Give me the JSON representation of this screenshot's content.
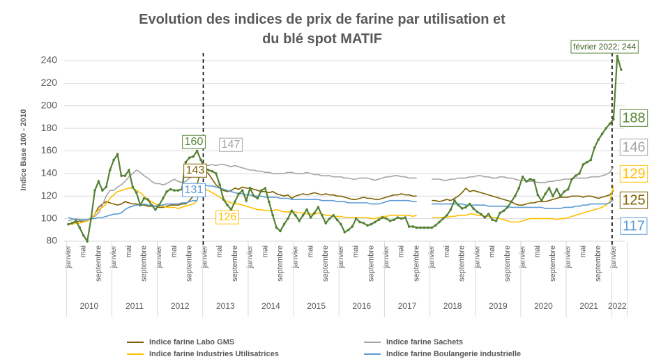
{
  "chart_data": {
    "type": "line",
    "title": "Evolution des indices de prix de farine par utilisation et du blé spot MATIF",
    "y_label": "Indice Base 100 - 2010",
    "ylim": [
      80,
      250
    ],
    "yticks": [
      80,
      100,
      120,
      140,
      160,
      180,
      200,
      220,
      240
    ],
    "grid": true,
    "legend": "bottom",
    "annotation": "février 2022; 244",
    "years": [
      "2010",
      "2011",
      "2012",
      "2013",
      "2014",
      "2015",
      "2016",
      "2017",
      "2018",
      "2019",
      "2020",
      "2021",
      "2022"
    ],
    "categories": [
      "janvier",
      null,
      null,
      null,
      "mai",
      null,
      null,
      null,
      "septembre",
      null,
      null,
      null,
      "janvier",
      null,
      null,
      null,
      "mai",
      null,
      null,
      null,
      "septembre",
      null,
      null,
      null,
      "janvier",
      null,
      null,
      null,
      "mai",
      null,
      null,
      null,
      "septembre",
      null,
      null,
      null,
      "janvier",
      null,
      null,
      null,
      "mai",
      null,
      null,
      null,
      "septembre",
      null,
      null,
      null,
      "janvier",
      null,
      null,
      null,
      "mai",
      null,
      null,
      null,
      "septembre",
      null,
      null,
      null,
      "janvier",
      null,
      null,
      null,
      "mai",
      null,
      null,
      null,
      "septembre",
      null,
      null,
      null,
      "janvier",
      null,
      null,
      null,
      "mai",
      null,
      null,
      null,
      "septembre",
      null,
      null,
      null,
      "janvier",
      null,
      null,
      null,
      "mai",
      null,
      null,
      null,
      "septembre",
      null,
      null,
      null,
      "janvier",
      null,
      null,
      null,
      "mai",
      null,
      null,
      null,
      "septembre",
      null,
      null,
      null,
      "janvier",
      null,
      null,
      null,
      "mai",
      null,
      null,
      null,
      "septembre",
      null,
      null,
      null,
      "janvier",
      null,
      null,
      null,
      "mai",
      null,
      null,
      null,
      "septembre",
      null,
      null,
      null,
      "janvier",
      null,
      null,
      null,
      "mai",
      null,
      null,
      null,
      "septembre",
      null,
      null,
      null,
      "janvier",
      null,
      null
    ],
    "series": [
      {
        "name": "Indice farine Labo GMS",
        "color": "#7f6000",
        "values": [
          95,
          96,
          97,
          98,
          97,
          98,
          100,
          104,
          110,
          113,
          115,
          114,
          113,
          112,
          113,
          115,
          114,
          113,
          113,
          112,
          112,
          111,
          111,
          111,
          110,
          110,
          111,
          112,
          112,
          112,
          113,
          113,
          116,
          120,
          130,
          143,
          142,
          140,
          135,
          130,
          127,
          125,
          124,
          125,
          127,
          126,
          128,
          127,
          127,
          126,
          125,
          124,
          124,
          123,
          124,
          122,
          121,
          120,
          121,
          118,
          120,
          121,
          122,
          121,
          122,
          123,
          122,
          121,
          122,
          121,
          121,
          120,
          120,
          119,
          118,
          117,
          117,
          118,
          119,
          118,
          118,
          117,
          117,
          118,
          119,
          120,
          121,
          121,
          122,
          121,
          121,
          120,
          120,
          null,
          null,
          null,
          116,
          116,
          115,
          116,
          117,
          116,
          118,
          120,
          123,
          127,
          124,
          125,
          124,
          123,
          122,
          121,
          120,
          119,
          118,
          117,
          116,
          115,
          113,
          112,
          112,
          113,
          114,
          114,
          115,
          115,
          115,
          116,
          117,
          118,
          119,
          119,
          119,
          120,
          120,
          120,
          119,
          120,
          120,
          119,
          118,
          119,
          120,
          121,
          125,
          null,
          null
        ]
      },
      {
        "name": "Indice farine Sachets",
        "color": "#a5a5a5",
        "values": [
          98,
          99,
          100,
          99,
          98,
          99,
          100,
          102,
          105,
          112,
          120,
          125,
          125,
          128,
          130,
          133,
          137,
          140,
          143,
          141,
          138,
          136,
          133,
          131,
          131,
          130,
          131,
          133,
          135,
          133,
          132,
          133,
          136,
          138,
          140,
          147,
          148,
          147,
          148,
          147,
          148,
          148,
          147,
          146,
          147,
          146,
          145,
          144,
          143,
          143,
          142,
          142,
          141,
          141,
          140,
          140,
          140,
          140,
          141,
          141,
          140,
          140,
          140,
          141,
          140,
          139,
          139,
          138,
          138,
          138,
          137,
          137,
          137,
          136,
          136,
          135,
          135,
          136,
          136,
          136,
          135,
          134,
          135,
          136,
          137,
          137,
          138,
          138,
          137,
          137,
          136,
          136,
          136,
          null,
          null,
          null,
          135,
          135,
          135,
          134,
          134,
          135,
          135,
          136,
          136,
          136,
          137,
          137,
          138,
          138,
          137,
          137,
          136,
          136,
          137,
          137,
          136,
          136,
          135,
          134,
          134,
          133,
          133,
          133,
          132,
          132,
          132,
          133,
          133,
          134,
          134,
          135,
          135,
          135,
          136,
          136,
          136,
          136,
          137,
          137,
          137,
          138,
          139,
          141,
          146,
          null,
          null
        ]
      },
      {
        "name": "Indice farine Industries Utilisatrices",
        "color": "#ffc000",
        "values": [
          95,
          95,
          96,
          96,
          97,
          98,
          100,
          104,
          108,
          110,
          113,
          118,
          121,
          124,
          125,
          126,
          127,
          127,
          125,
          123,
          120,
          117,
          115,
          113,
          112,
          111,
          110,
          110,
          110,
          109,
          110,
          111,
          112,
          113,
          116,
          null,
          126,
          125,
          123,
          121,
          119,
          117,
          115,
          114,
          113,
          113,
          112,
          111,
          110,
          109,
          108,
          108,
          107,
          107,
          107,
          108,
          107,
          106,
          106,
          106,
          106,
          105,
          105,
          104,
          104,
          104,
          105,
          104,
          103,
          103,
          102,
          102,
          102,
          101,
          101,
          101,
          101,
          101,
          101,
          101,
          100,
          100,
          101,
          102,
          102,
          103,
          103,
          103,
          103,
          103,
          103,
          102,
          103,
          null,
          null,
          null,
          101,
          101,
          101,
          101,
          101,
          102,
          102,
          103,
          103,
          103,
          104,
          104,
          103,
          103,
          102,
          102,
          101,
          101,
          100,
          99,
          98,
          97,
          97,
          97,
          98,
          99,
          100,
          100,
          100,
          100,
          100,
          100,
          100,
          99,
          100,
          100,
          101,
          102,
          103,
          104,
          105,
          106,
          107,
          108,
          109,
          110,
          112,
          115,
          129,
          null,
          null
        ]
      },
      {
        "name": "Indice farine Boulangerie industrielle",
        "color": "#5b9bd5",
        "values": [
          101,
          100,
          99,
          99,
          99,
          99,
          100,
          100,
          101,
          101,
          102,
          103,
          104,
          104,
          105,
          108,
          110,
          111,
          112,
          112,
          113,
          112,
          112,
          111,
          112,
          112,
          113,
          113,
          113,
          113,
          114,
          114,
          115,
          116,
          116,
          131,
          130,
          129,
          129,
          128,
          127,
          126,
          125,
          124,
          123,
          122,
          122,
          121,
          121,
          120,
          120,
          120,
          119,
          119,
          119,
          119,
          118,
          118,
          118,
          117,
          117,
          117,
          117,
          117,
          117,
          117,
          117,
          116,
          116,
          116,
          116,
          115,
          115,
          115,
          114,
          114,
          114,
          114,
          114,
          114,
          113,
          113,
          113,
          114,
          115,
          116,
          116,
          116,
          116,
          116,
          116,
          115,
          115,
          null,
          null,
          null,
          113,
          113,
          113,
          113,
          113,
          113,
          113,
          113,
          113,
          112,
          112,
          112,
          112,
          112,
          112,
          111,
          111,
          111,
          111,
          111,
          111,
          110,
          110,
          110,
          110,
          110,
          110,
          110,
          110,
          110,
          109,
          109,
          109,
          109,
          109,
          110,
          110,
          110,
          111,
          111,
          112,
          112,
          113,
          113,
          113,
          113,
          113,
          114,
          117,
          null,
          null
        ]
      },
      {
        "color": "#548235",
        "values": [
          95,
          96,
          98,
          92,
          85,
          80,
          100,
          125,
          133,
          125,
          128,
          143,
          152,
          157,
          138,
          138,
          143,
          128,
          123,
          112,
          118,
          117,
          112,
          108,
          112,
          118,
          124,
          126,
          125,
          125,
          126,
          150,
          154,
          155,
          160,
          152,
          145,
          143,
          142,
          140,
          130,
          117,
          112,
          108,
          115,
          122,
          125,
          116,
          127,
          120,
          118,
          125,
          127,
          115,
          103,
          92,
          89,
          95,
          100,
          107,
          103,
          98,
          103,
          108,
          101,
          105,
          110,
          103,
          96,
          100,
          103,
          99,
          95,
          88,
          90,
          93,
          100,
          97,
          96,
          94,
          95,
          97,
          99,
          101,
          100,
          98,
          99,
          101,
          100,
          101,
          93,
          93,
          92,
          92,
          92,
          92,
          92,
          94,
          97,
          100,
          103,
          108,
          116,
          112,
          109,
          110,
          113,
          109,
          106,
          104,
          101,
          104,
          99,
          98,
          105,
          107,
          110,
          115,
          120,
          127,
          137,
          133,
          135,
          134,
          121,
          116,
          122,
          127,
          120,
          126,
          120,
          124,
          126,
          135,
          138,
          140,
          148,
          150,
          152,
          163,
          170,
          175,
          180,
          184,
          188,
          244,
          232
        ]
      }
    ]
  }
}
